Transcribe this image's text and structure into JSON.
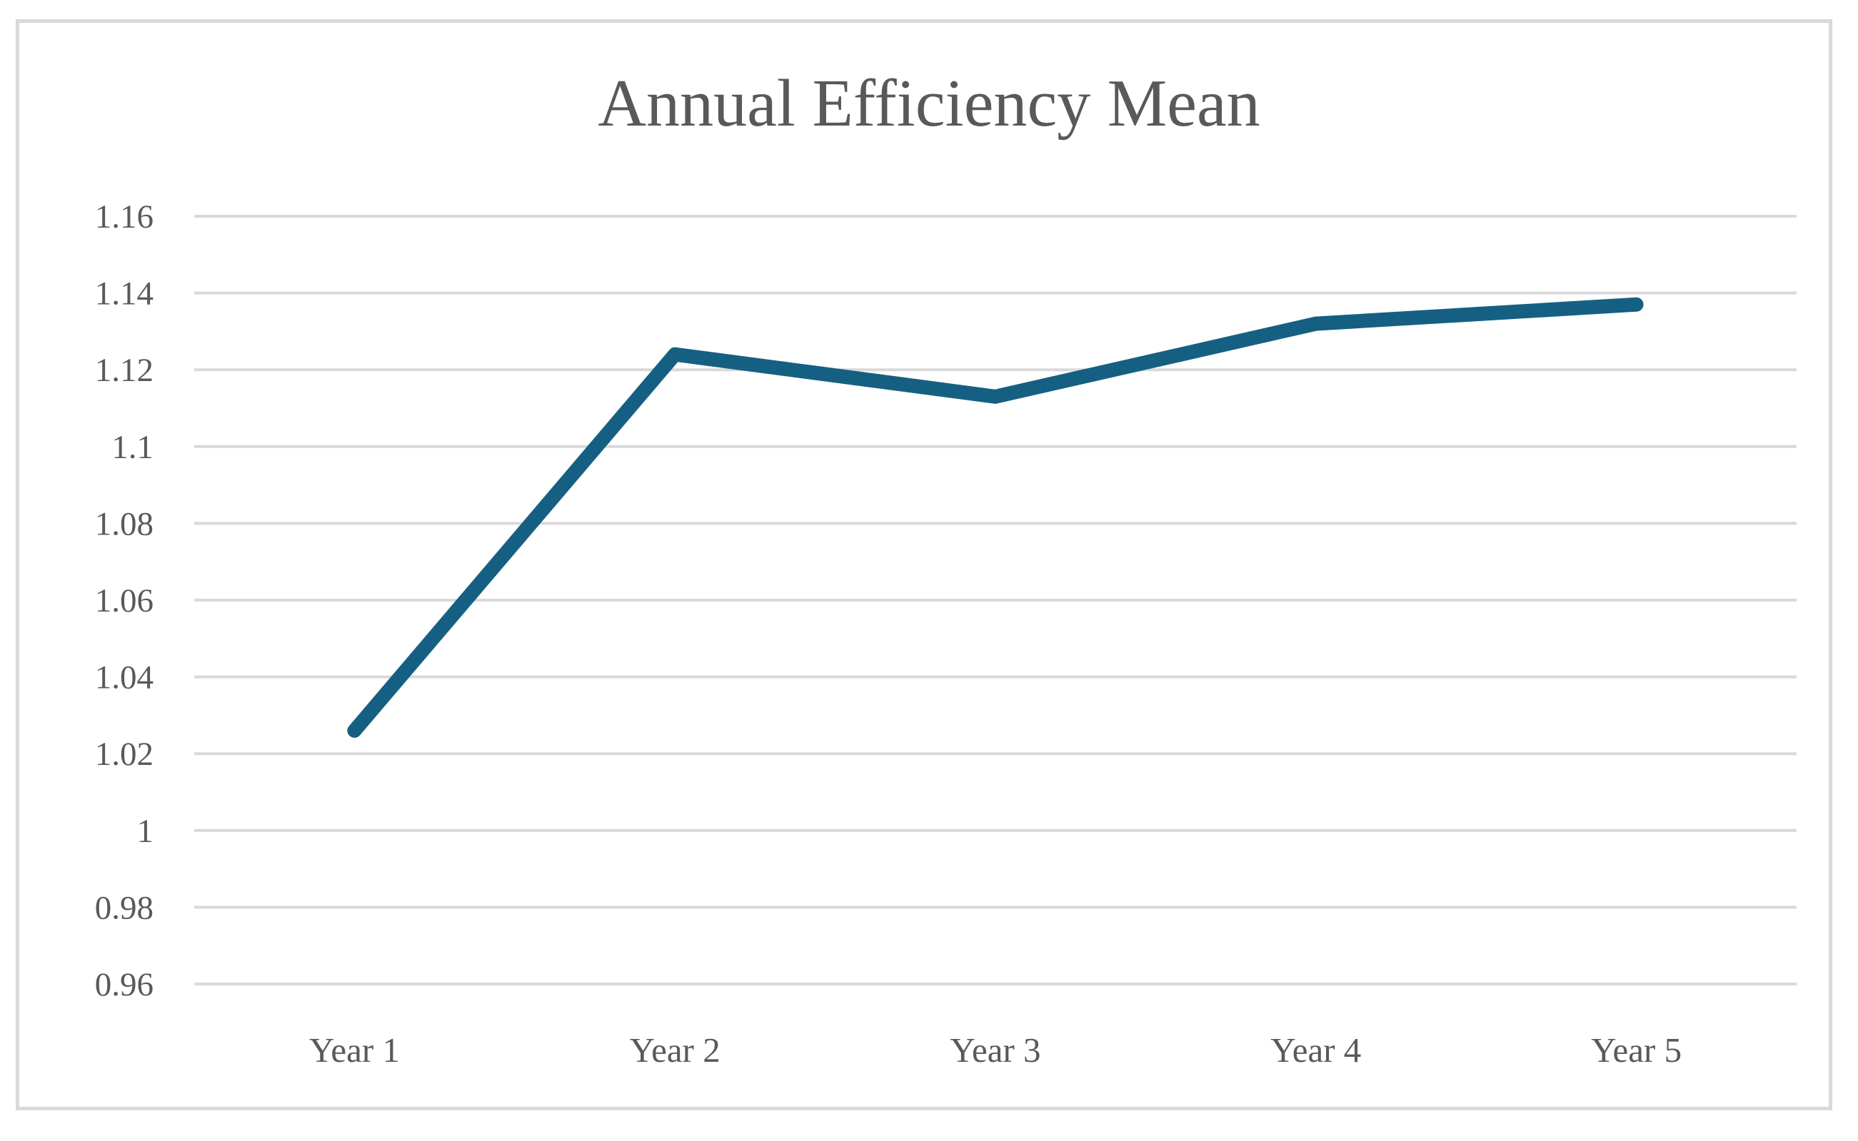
{
  "window": {
    "background_color": "#FFFFFF",
    "border_color": "#D9D9D9"
  },
  "chart_data": {
    "type": "line",
    "title": "Annual Efficiency Mean",
    "categories": [
      "Year 1",
      "Year 2",
      "Year 3",
      "Year 4",
      "Year 5"
    ],
    "series": [
      {
        "name": "Annual Efficiency Mean",
        "values": [
          1.026,
          1.124,
          1.113,
          1.132,
          1.137
        ],
        "color": "#156082",
        "stroke_width": 20
      }
    ],
    "xlabel": "",
    "ylabel": "",
    "ylim": [
      0.96,
      1.16
    ],
    "ytick_step": 0.02,
    "ytick_labels_top_to_bottom": [
      "1.16",
      "1.14",
      "1.12",
      "1.1",
      "1.08",
      "1.06",
      "1.04",
      "1.02",
      "1",
      "0.98",
      "0.96"
    ],
    "grid": "horizontal",
    "gridline_color": "#D9D9D9",
    "axis_text_color": "#595959",
    "title_color": "#595959",
    "legend": "none",
    "markers": "none"
  }
}
